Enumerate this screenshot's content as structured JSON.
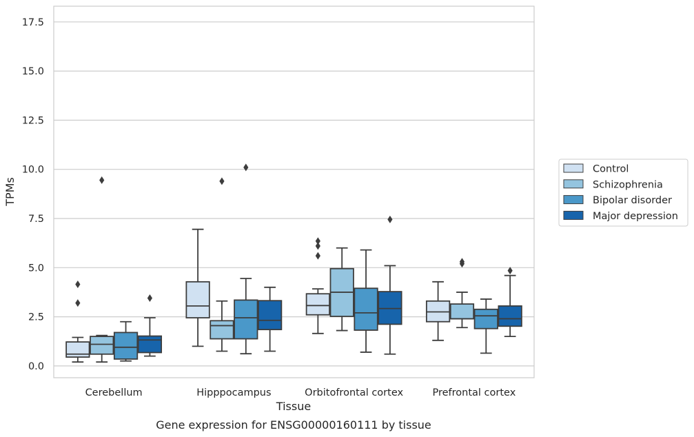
{
  "chart_data": {
    "type": "box",
    "caption": "Gene expression for ENSG00000160111 by tissue",
    "xlabel": "Tissue",
    "ylabel": "TPMs",
    "ylim": [
      -0.6,
      18.3
    ],
    "yticks": [
      0.0,
      2.5,
      5.0,
      7.5,
      10.0,
      12.5,
      15.0,
      17.5
    ],
    "ytick_labels": [
      "0.0",
      "2.5",
      "5.0",
      "7.5",
      "10.0",
      "12.5",
      "15.0",
      "17.5"
    ],
    "grid": "horizontal",
    "legend_position": "right",
    "categories": [
      "Cerebellum",
      "Hipppocampus",
      "Orbitofrontal cortex",
      "Prefrontal cortex"
    ],
    "series": [
      {
        "name": "Control",
        "color": "#d0e1f2",
        "boxes": [
          {
            "whisker_low": 0.2,
            "q1": 0.45,
            "median": 0.6,
            "q3": 1.22,
            "whisker_high": 1.45,
            "outliers": [
              3.2,
              4.15
            ]
          },
          {
            "whisker_low": 1.0,
            "q1": 2.45,
            "median": 3.05,
            "q3": 4.28,
            "whisker_high": 6.95,
            "outliers": []
          },
          {
            "whisker_low": 1.65,
            "q1": 2.6,
            "median": 3.07,
            "q3": 3.67,
            "whisker_high": 3.92,
            "outliers": [
              5.6,
              6.1,
              6.35
            ]
          },
          {
            "whisker_low": 1.3,
            "q1": 2.25,
            "median": 2.75,
            "q3": 3.3,
            "whisker_high": 4.28,
            "outliers": []
          }
        ]
      },
      {
        "name": "Schizophrenia",
        "color": "#94c4df",
        "boxes": [
          {
            "whisker_low": 0.2,
            "q1": 0.6,
            "median": 1.1,
            "q3": 1.5,
            "whisker_high": 1.55,
            "outliers": [
              9.45
            ]
          },
          {
            "whisker_low": 0.75,
            "q1": 1.38,
            "median": 2.05,
            "q3": 2.3,
            "whisker_high": 3.3,
            "outliers": [
              9.4
            ]
          },
          {
            "whisker_low": 1.8,
            "q1": 2.52,
            "median": 3.75,
            "q3": 4.95,
            "whisker_high": 6.0,
            "outliers": []
          },
          {
            "whisker_low": 1.95,
            "q1": 2.4,
            "median": 2.4,
            "q3": 3.15,
            "whisker_high": 3.75,
            "outliers": [
              5.2,
              5.3
            ]
          }
        ]
      },
      {
        "name": "Bipolar disorder",
        "color": "#4a98c9",
        "boxes": [
          {
            "whisker_low": 0.25,
            "q1": 0.35,
            "median": 0.95,
            "q3": 1.7,
            "whisker_high": 2.25,
            "outliers": []
          },
          {
            "whisker_low": 0.62,
            "q1": 1.38,
            "median": 2.45,
            "q3": 3.35,
            "whisker_high": 4.45,
            "outliers": [
              10.1
            ]
          },
          {
            "whisker_low": 0.7,
            "q1": 1.82,
            "median": 2.7,
            "q3": 3.95,
            "whisker_high": 5.9,
            "outliers": []
          },
          {
            "whisker_low": 0.65,
            "q1": 1.9,
            "median": 2.55,
            "q3": 2.88,
            "whisker_high": 3.4,
            "outliers": []
          }
        ]
      },
      {
        "name": "Major depression",
        "color": "#1764ab",
        "boxes": [
          {
            "whisker_low": 0.5,
            "q1": 0.68,
            "median": 1.32,
            "q3": 1.52,
            "whisker_high": 2.45,
            "outliers": [
              3.45
            ]
          },
          {
            "whisker_low": 0.75,
            "q1": 1.85,
            "median": 2.32,
            "q3": 3.32,
            "whisker_high": 4.0,
            "outliers": []
          },
          {
            "whisker_low": 0.6,
            "q1": 2.12,
            "median": 2.92,
            "q3": 3.78,
            "whisker_high": 5.1,
            "outliers": [
              7.45
            ]
          },
          {
            "whisker_low": 1.5,
            "q1": 2.02,
            "median": 2.4,
            "q3": 3.05,
            "whisker_high": 4.6,
            "outliers": [
              4.85
            ]
          }
        ]
      }
    ]
  }
}
